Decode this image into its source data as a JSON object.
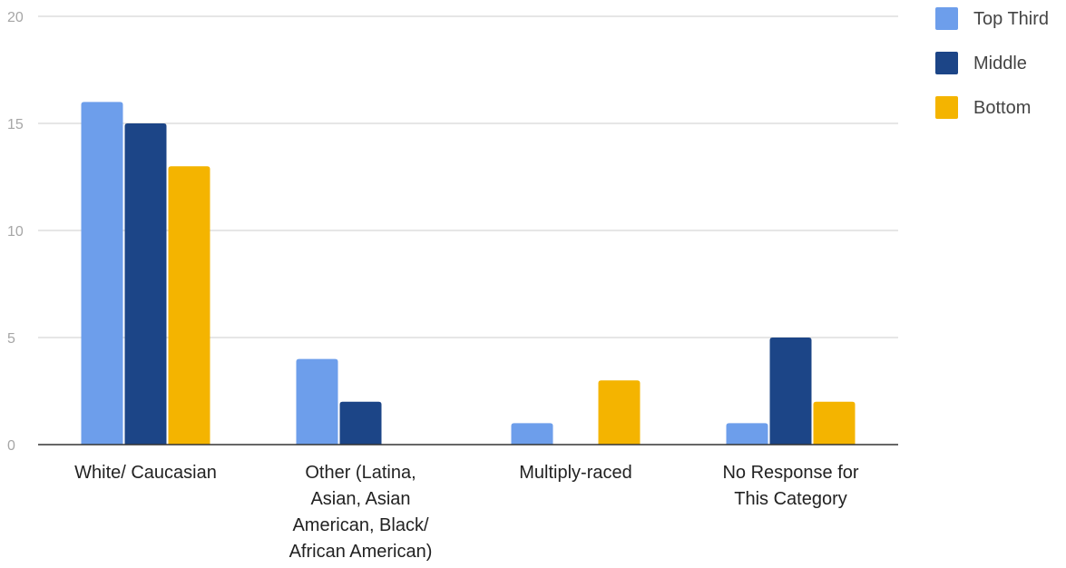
{
  "chart_data": {
    "type": "bar",
    "title": "",
    "xlabel": "",
    "ylabel": "",
    "ylim": [
      0,
      20
    ],
    "yticks": [
      0,
      5,
      10,
      15,
      20
    ],
    "grid": true,
    "legend_position": "top-right",
    "categories": [
      "White/ Caucasian",
      "Other (Latina, Asian, Asian American, Black/ African American)",
      "Multiply-raced",
      "No Response for This Category"
    ],
    "category_label_lines": [
      [
        "White/ Caucasian"
      ],
      [
        "Other (Latina,",
        "Asian, Asian",
        "American, Black/",
        "African American)"
      ],
      [
        "Multiply-raced"
      ],
      [
        "No Response for",
        "This Category"
      ]
    ],
    "series": [
      {
        "name": "Top Third",
        "color": "#6d9eeb",
        "values": [
          16,
          4,
          1,
          1
        ]
      },
      {
        "name": "Middle",
        "color": "#1c4587",
        "values": [
          15,
          2,
          0,
          5
        ]
      },
      {
        "name": "Bottom",
        "color": "#f4b400",
        "values": [
          13,
          0,
          3,
          2
        ]
      }
    ]
  }
}
